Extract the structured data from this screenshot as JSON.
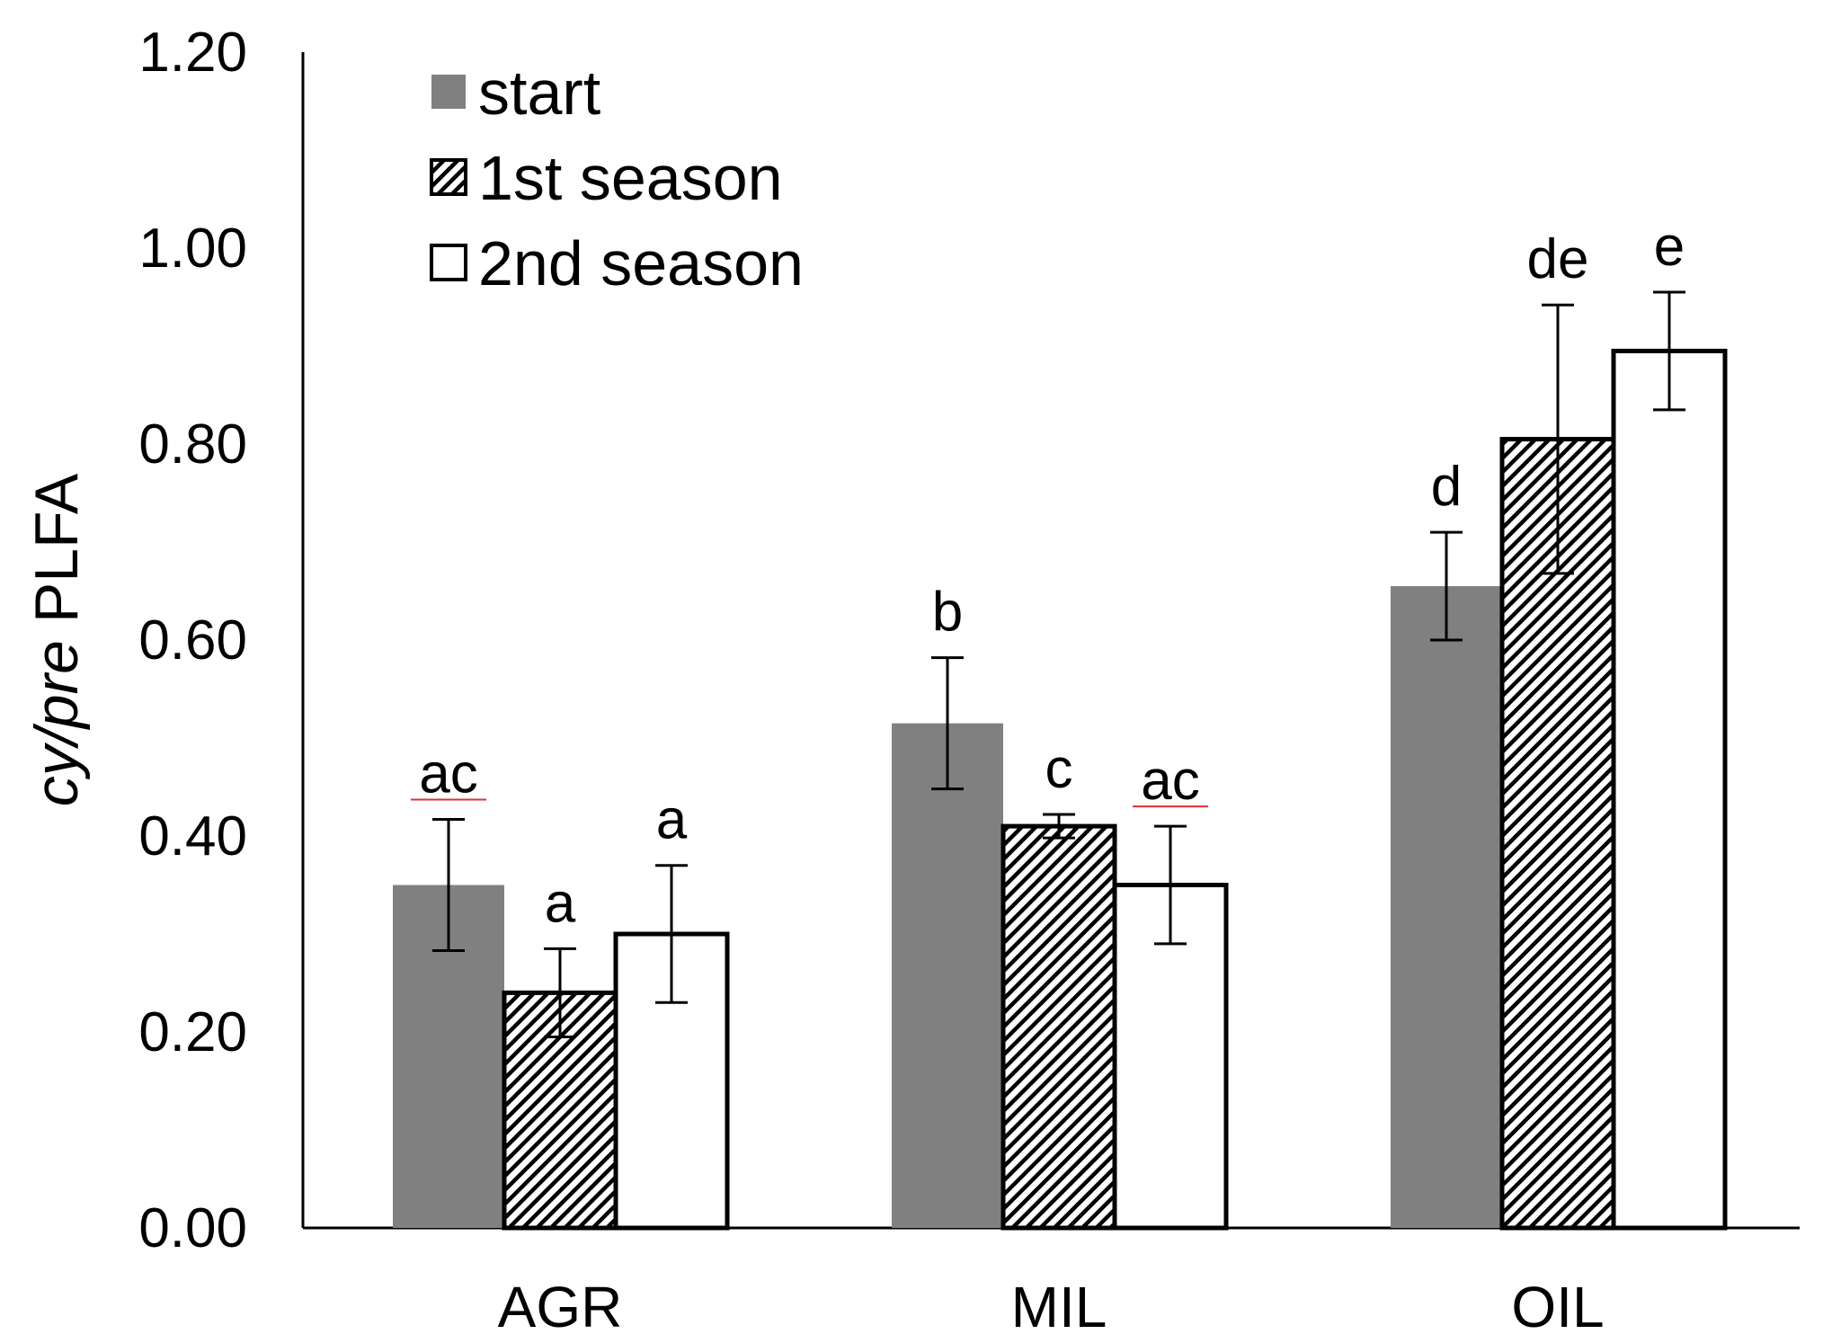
{
  "chart_data": {
    "type": "bar",
    "title": "",
    "xlabel": "",
    "ylabel_italic": "cy/pre",
    "ylabel_rest": " PLFA",
    "ylim": [
      0,
      1.2
    ],
    "yticks": [
      "0.00",
      "0.20",
      "0.40",
      "0.60",
      "0.80",
      "1.00",
      "1.20"
    ],
    "categories": [
      "AGR",
      "MIL",
      "OIL"
    ],
    "legend_position": "top-left",
    "series": [
      {
        "name": "start",
        "style": "solid",
        "color": "#808080",
        "values": [
          0.35,
          0.515,
          0.655
        ],
        "errors": [
          0.067,
          0.067,
          0.055
        ],
        "letters": [
          "ac",
          "b",
          "d"
        ],
        "underlined": [
          true,
          false,
          false
        ]
      },
      {
        "name": "1st season",
        "style": "hatched",
        "color": "#ffffff",
        "values": [
          0.24,
          0.41,
          0.805
        ],
        "errors": [
          0.045,
          0.012,
          0.137
        ],
        "letters": [
          "a",
          "c",
          "de"
        ],
        "underlined": [
          false,
          false,
          false
        ]
      },
      {
        "name": "2nd season",
        "style": "open",
        "color": "#ffffff",
        "values": [
          0.3,
          0.35,
          0.895
        ],
        "errors": [
          0.07,
          0.06,
          0.06
        ],
        "letters": [
          "a",
          "ac",
          "e"
        ],
        "underlined": [
          false,
          true,
          false
        ]
      }
    ]
  }
}
